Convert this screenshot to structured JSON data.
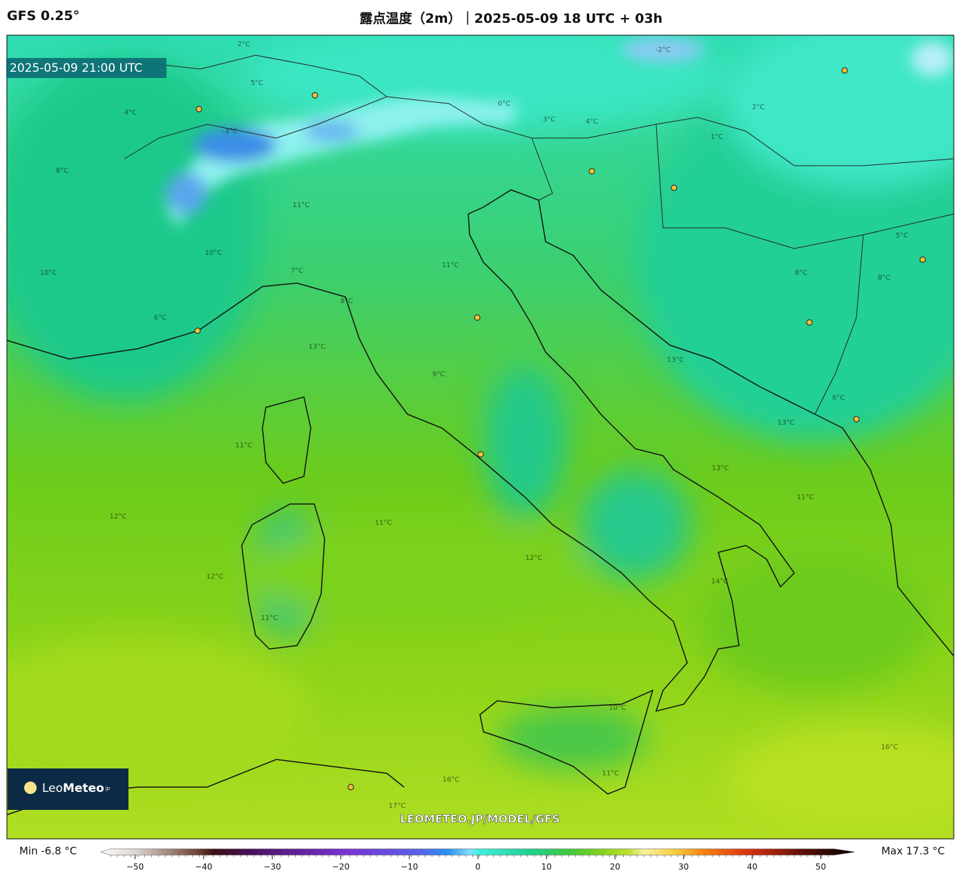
{
  "header": {
    "model": "GFS 0.25°",
    "title": "露点温度（2m）｜2025-05-09 18 UTC + 03h"
  },
  "timestamp": "2025-05-09 21:00 UTC",
  "watermark": "LEOMETEO.JP/MODEL/GFS",
  "logo": {
    "part1": "Leo",
    "part2": "Meteo",
    "suffix": "jp"
  },
  "contour_labels": [
    "2°C",
    "5°C",
    "4°C",
    "8°C",
    "11°C",
    "10°C",
    "10°C",
    "6°C",
    "8°C",
    "13°C",
    "9°C",
    "11°C",
    "11°C",
    "12°C",
    "12°C",
    "11°C",
    "11°C",
    "12°C",
    "14°C",
    "13°C",
    "11°C",
    "13°C",
    "16°C",
    "16°C",
    "17°C",
    "2°C",
    "1°C",
    "3°C",
    "4°C",
    "5°C",
    "8°C",
    "8°C",
    "6°C",
    "10°C",
    "11°C",
    "13°C",
    "-3°C",
    "-2°C",
    "0°C",
    "7°C"
  ],
  "colorbar": {
    "min_label": "Min -6.8 °C",
    "max_label": "Max 17.3 °C",
    "lim": [
      -55,
      55
    ],
    "ticks": [
      {
        "value": -50,
        "label": "−50"
      },
      {
        "value": -40,
        "label": "−40"
      },
      {
        "value": -30,
        "label": "−30"
      },
      {
        "value": -20,
        "label": "−20"
      },
      {
        "value": -10,
        "label": "−10"
      },
      0,
      10,
      20,
      30,
      40,
      50
    ]
  }
}
